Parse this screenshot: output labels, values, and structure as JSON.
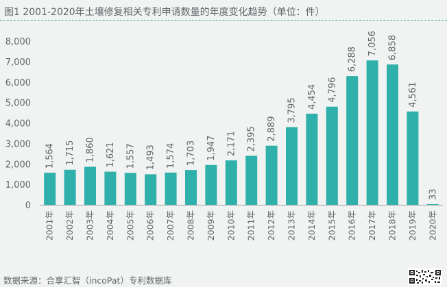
{
  "page": {
    "title": "图1 2001-2020年土壤修复相关专利申请数量的年度变化趋势（单位：件）",
    "source": "数据来源：合享汇智（incoPat）专利数据库"
  },
  "colors": {
    "bar": "#2fb0aa",
    "axis": "#9aa0a2",
    "text": "#5f6668",
    "background": "#f1f3f2"
  },
  "chart_data": {
    "type": "bar",
    "title": "图1 2001-2020年土壤修复相关专利申请数量的年度变化趋势（单位：件）",
    "xlabel": "",
    "ylabel": "",
    "ylim": [
      0,
      8000
    ],
    "yticks": [
      0,
      1000,
      2000,
      3000,
      4000,
      5000,
      6000,
      7000,
      8000
    ],
    "ytick_labels": [
      "0",
      "1,000",
      "2,000",
      "3,000",
      "4,000",
      "5,000",
      "6,000",
      "7,000",
      "8,000"
    ],
    "grid": false,
    "categories": [
      "2001年",
      "2002年",
      "2003年",
      "2004年",
      "2005年",
      "2006年",
      "2007年",
      "2008年",
      "2009年",
      "2010年",
      "2011年",
      "2012年",
      "2013年",
      "2014年",
      "2015年",
      "2016年",
      "2017年",
      "2018年",
      "2019年",
      "2020年"
    ],
    "values": [
      1564,
      1715,
      1860,
      1621,
      1557,
      1493,
      1574,
      1703,
      1947,
      2171,
      2395,
      2889,
      3795,
      4454,
      4796,
      6288,
      7056,
      6858,
      4561,
      33
    ],
    "value_labels": [
      "1,564",
      "1,715",
      "1,860",
      "1,621",
      "1,557",
      "1,493",
      "1,574",
      "1,703",
      "1,947",
      "2,171",
      "2,395",
      "2,889",
      "3,795",
      "4,454",
      "4,796",
      "6,288",
      "7,056",
      "6,858",
      "4,561",
      "33"
    ]
  }
}
